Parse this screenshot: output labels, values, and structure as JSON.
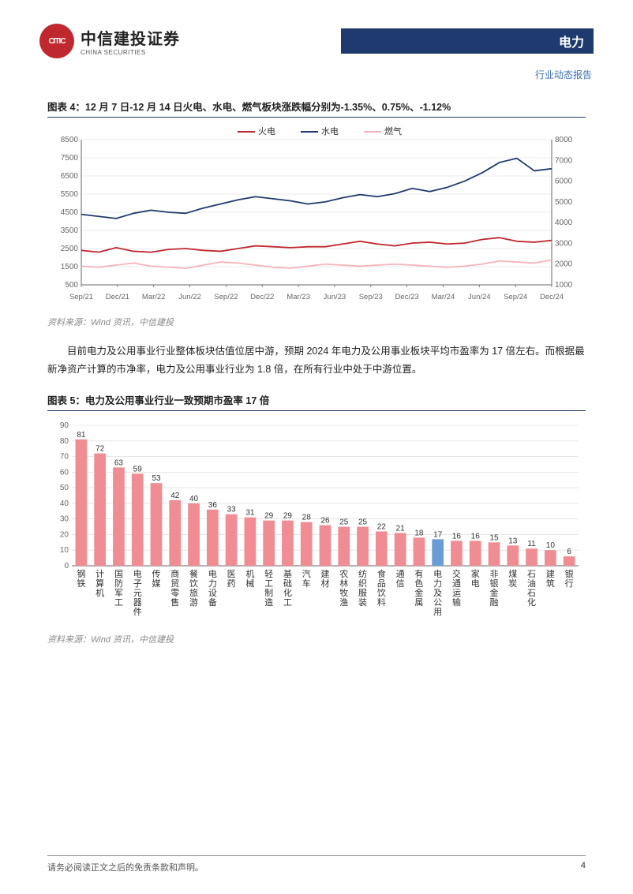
{
  "header": {
    "logo_cn": "中信建投证券",
    "logo_en": "CHINA SECURITIES",
    "sector": "电力",
    "report_type": "行业动态报告"
  },
  "chart4": {
    "title": "图表 4：12 月 7 日-12 月 14 日火电、水电、燃气板块涨跌幅分别为-1.35%、0.75%、-1.12%",
    "type": "line",
    "legend": [
      "火电",
      "水电",
      "燃气"
    ],
    "legend_colors": [
      "#c0282f",
      "#1f3a6e",
      "#f5b3b8"
    ],
    "x_labels": [
      "Sep/21",
      "Dec/21",
      "Mar/22",
      "Jun/22",
      "Sep/22",
      "Dec/22",
      "Mar/23",
      "Jun/23",
      "Sep/23",
      "Dec/23",
      "Mar/24",
      "Jun/24",
      "Sep/24",
      "Dec/24"
    ],
    "y_left": {
      "min": 500,
      "max": 8500,
      "step": 1000
    },
    "y_right": {
      "min": 1000,
      "max": 8000,
      "step": 1000
    },
    "series": {
      "huo": [
        2400,
        2300,
        2550,
        2350,
        2300,
        2450,
        2500,
        2400,
        2350,
        2500,
        2650,
        2600,
        2550,
        2600,
        2600,
        2750,
        2900,
        2750,
        2650,
        2800,
        2850,
        2750,
        2800,
        3000,
        3100,
        2900,
        2850,
        2950
      ],
      "shui": [
        4400,
        4300,
        4200,
        4450,
        4600,
        4500,
        4450,
        4700,
        4900,
        5100,
        5250,
        5150,
        5050,
        4900,
        5000,
        5200,
        5350,
        5250,
        5400,
        5650,
        5500,
        5700,
        6000,
        6400,
        6900,
        7100,
        6500,
        6600
      ],
      "ranqi": [
        1900,
        1850,
        1950,
        2050,
        1900,
        1850,
        1800,
        1950,
        2100,
        2050,
        1950,
        1850,
        1800,
        1900,
        2000,
        1950,
        1900,
        1950,
        2000,
        1950,
        1900,
        1850,
        1900,
        2000,
        2150,
        2100,
        2050,
        2200
      ]
    },
    "line_width": 1.8,
    "grid_color": "#d8d8d8",
    "axis_color": "#666666",
    "tick_fontsize": 10,
    "underline_color": "#1f3a6e",
    "source": "资料来源：Wind 资讯，中信建投"
  },
  "paragraph": "目前电力及公用事业行业整体板块估值位居中游，预期 2024 年电力及公用事业板块平均市盈率为 17 倍左右。而根据最新净资产计算的市净率，电力及公用事业行业为 1.8 倍，在所有行业中处于中游位置。",
  "chart5": {
    "title": "图表 5：电力及公用事业行业一致预期市盈率 17 倍",
    "type": "bar",
    "categories": [
      "钢铁",
      "计算机",
      "国防军工",
      "电子元器件",
      "传媒",
      "商贸零售",
      "餐饮旅游",
      "电力设备",
      "医药",
      "机械",
      "轻工制造",
      "基础化工",
      "汽车",
      "建材",
      "农林牧渔",
      "纺织服装",
      "食品饮料",
      "通信",
      "有色金属",
      "电力及公用",
      "交通运输",
      "家电",
      "非银金融",
      "煤炭",
      "石油石化",
      "建筑",
      "银行"
    ],
    "values": [
      81,
      72,
      63,
      59,
      53,
      42,
      40,
      36,
      33,
      31,
      29,
      29,
      28,
      26,
      25,
      25,
      22,
      21,
      18,
      17,
      16,
      16,
      15,
      13,
      11,
      10,
      6
    ],
    "highlight_index": 19,
    "bar_color": "#f08d94",
    "highlight_color": "#6a9dd6",
    "label_color": "#333333",
    "label_fontsize": 10,
    "y": {
      "min": 0,
      "max": 90,
      "step": 10
    },
    "grid_color": "#d8d8d8",
    "axis_color": "#666666",
    "bar_width_ratio": 0.62,
    "underline_color": "#1f3a6e",
    "source": "资料来源：Wind 资讯，中信建投"
  },
  "footer": {
    "disclaimer": "请务必阅读正文之后的免责条款和声明。",
    "page": "4"
  }
}
